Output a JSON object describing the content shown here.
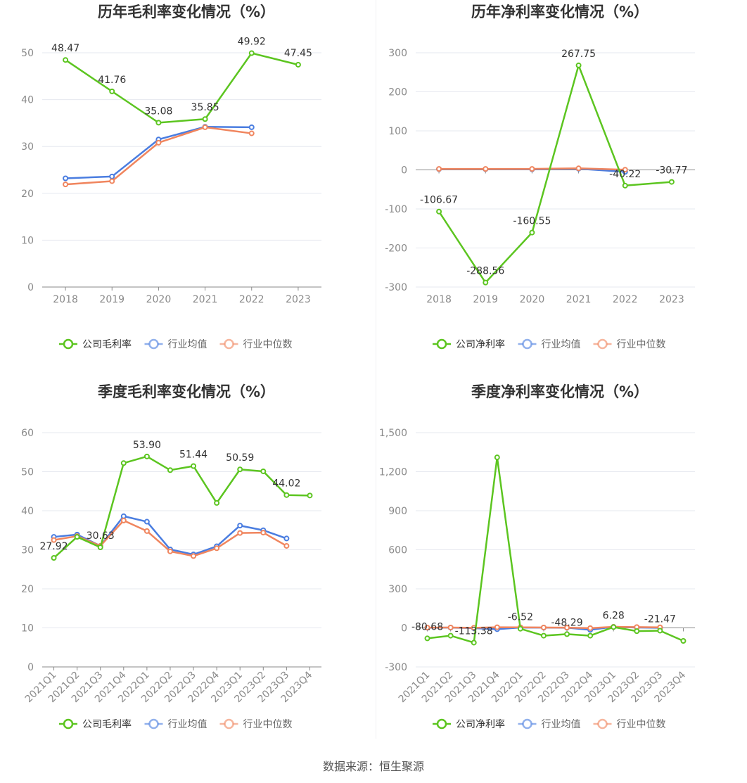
{
  "source_label": "数据来源：恒生聚源",
  "colors": {
    "company": "#5cc520",
    "avg": "#4a7de0",
    "median": "#f0855e",
    "grid": "#e6e8ef",
    "axis": "#8a8a8a"
  },
  "chart_data": [
    {
      "id": "annual_gross",
      "type": "line",
      "title": "历年毛利率变化情况（%）",
      "categories": [
        "2018",
        "2019",
        "2020",
        "2021",
        "2022",
        "2023"
      ],
      "ylim": [
        0,
        50
      ],
      "yticks": [
        0,
        10,
        20,
        30,
        40,
        50
      ],
      "ytick_labels": [
        "0",
        "10",
        "20",
        "30",
        "40",
        "50"
      ],
      "rotate_x": false,
      "series": [
        {
          "name": "公司毛利率",
          "role": "company",
          "values": [
            48.47,
            41.76,
            35.08,
            35.85,
            49.92,
            47.45
          ]
        },
        {
          "name": "行业均值",
          "role": "avg",
          "values": [
            23.2,
            23.6,
            31.5,
            34.2,
            34.1,
            null
          ]
        },
        {
          "name": "行业中位数",
          "role": "median",
          "values": [
            21.9,
            22.6,
            30.8,
            34.1,
            32.8,
            null
          ]
        }
      ],
      "data_labels": [
        {
          "text": "48.47",
          "i": 0,
          "v": 48.47
        },
        {
          "text": "41.76",
          "i": 1,
          "v": 41.76
        },
        {
          "text": "35.08",
          "i": 2,
          "v": 35.08
        },
        {
          "text": "35.85",
          "i": 3,
          "v": 35.85
        },
        {
          "text": "49.92",
          "i": 4,
          "v": 49.92
        },
        {
          "text": "47.45",
          "i": 5,
          "v": 47.45
        }
      ]
    },
    {
      "id": "annual_net",
      "type": "line",
      "title": "历年净利率变化情况（%）",
      "categories": [
        "2018",
        "2019",
        "2020",
        "2021",
        "2022",
        "2023"
      ],
      "ylim": [
        -300,
        300
      ],
      "yticks": [
        -300,
        -200,
        -100,
        0,
        100,
        200,
        300
      ],
      "ytick_labels": [
        "-300",
        "-200",
        "-100",
        "0",
        "100",
        "200",
        "300"
      ],
      "rotate_x": false,
      "series": [
        {
          "name": "公司净利率",
          "role": "company",
          "values": [
            -106.67,
            -288.56,
            -160.55,
            267.75,
            -40.22,
            -30.77
          ]
        },
        {
          "name": "行业均值",
          "role": "avg",
          "values": [
            2,
            2,
            1.5,
            3,
            -5,
            null
          ]
        },
        {
          "name": "行业中位数",
          "role": "median",
          "values": [
            2.5,
            2.5,
            2.5,
            4,
            0.5,
            null
          ]
        }
      ],
      "data_labels": [
        {
          "text": "-106.67",
          "i": 0,
          "v": -106.67
        },
        {
          "text": "-288.56",
          "i": 1,
          "v": -288.56
        },
        {
          "text": "-160.55",
          "i": 2,
          "v": -160.55
        },
        {
          "text": "267.75",
          "i": 3,
          "v": 267.75
        },
        {
          "text": "-40.22",
          "i": 4,
          "v": -40.22
        },
        {
          "text": "-30.77",
          "i": 5,
          "v": -30.77
        }
      ]
    },
    {
      "id": "quarterly_gross",
      "type": "line",
      "title": "季度毛利率变化情况（%）",
      "categories": [
        "2021Q1",
        "2021Q2",
        "2021Q3",
        "2021Q4",
        "2022Q1",
        "2022Q2",
        "2022Q3",
        "2022Q4",
        "2023Q1",
        "2023Q2",
        "2023Q3",
        "2023Q4"
      ],
      "ylim": [
        0,
        60
      ],
      "yticks": [
        0,
        10,
        20,
        30,
        40,
        50,
        60
      ],
      "ytick_labels": [
        "0",
        "10",
        "20",
        "30",
        "40",
        "50",
        "60"
      ],
      "rotate_x": true,
      "series": [
        {
          "name": "公司毛利率",
          "role": "company",
          "values": [
            27.92,
            33.3,
            30.63,
            52.2,
            53.9,
            50.4,
            51.44,
            42.0,
            50.59,
            50.1,
            44.02,
            43.9
          ]
        },
        {
          "name": "行业均值",
          "role": "avg",
          "values": [
            33.3,
            33.9,
            31.0,
            38.6,
            37.2,
            30.1,
            28.8,
            30.9,
            36.2,
            35.0,
            32.9,
            null
          ]
        },
        {
          "name": "行业中位数",
          "role": "median",
          "values": [
            32.5,
            33.5,
            31.0,
            37.5,
            34.8,
            29.6,
            28.4,
            30.4,
            34.3,
            34.4,
            31.0,
            null
          ]
        }
      ],
      "data_labels": [
        {
          "text": "27.92",
          "i": 0,
          "v": 27.92
        },
        {
          "text": "30.63",
          "i": 2,
          "v": 30.63
        },
        {
          "text": "53.90",
          "i": 4,
          "v": 53.9
        },
        {
          "text": "51.44",
          "i": 6,
          "v": 51.44
        },
        {
          "text": "50.59",
          "i": 8,
          "v": 50.59
        },
        {
          "text": "44.02",
          "i": 10,
          "v": 44.02
        }
      ]
    },
    {
      "id": "quarterly_net",
      "type": "line",
      "title": "季度净利率变化情况（%）",
      "categories": [
        "2021Q1",
        "2021Q2",
        "2021Q3",
        "2021Q4",
        "2022Q1",
        "2022Q2",
        "2022Q3",
        "2022Q4",
        "2023Q1",
        "2023Q2",
        "2023Q3",
        "2023Q4"
      ],
      "ylim": [
        -300,
        1500
      ],
      "yticks": [
        -300,
        0,
        300,
        600,
        900,
        1200,
        1500
      ],
      "ytick_labels": [
        "-300",
        "0",
        "300",
        "600",
        "900",
        "1,200",
        "1,500"
      ],
      "rotate_x": true,
      "series": [
        {
          "name": "公司净利率",
          "role": "company",
          "values": [
            -80.68,
            -60,
            -113.38,
            1310,
            -6.52,
            -60,
            -48.29,
            -60,
            6.28,
            -25,
            -21.47,
            -100
          ]
        },
        {
          "name": "行业均值",
          "role": "avg",
          "values": [
            1,
            2,
            -2,
            -10,
            3,
            2,
            1,
            -15,
            8,
            3,
            1,
            null
          ]
        },
        {
          "name": "行业中位数",
          "role": "median",
          "values": [
            2,
            3,
            1,
            5,
            4,
            3,
            2,
            -2,
            8,
            6,
            4,
            null
          ]
        }
      ],
      "data_labels": [
        {
          "text": "-80.68",
          "i": 0,
          "v": -80.68
        },
        {
          "text": "-113.38",
          "i": 2,
          "v": -113.38
        },
        {
          "text": "-6.52",
          "i": 4,
          "v": -6.52
        },
        {
          "text": "-48.29",
          "i": 6,
          "v": -48.29
        },
        {
          "text": "6.28",
          "i": 8,
          "v": 6.28
        },
        {
          "text": "-21.47",
          "i": 10,
          "v": -21.47
        }
      ]
    }
  ]
}
